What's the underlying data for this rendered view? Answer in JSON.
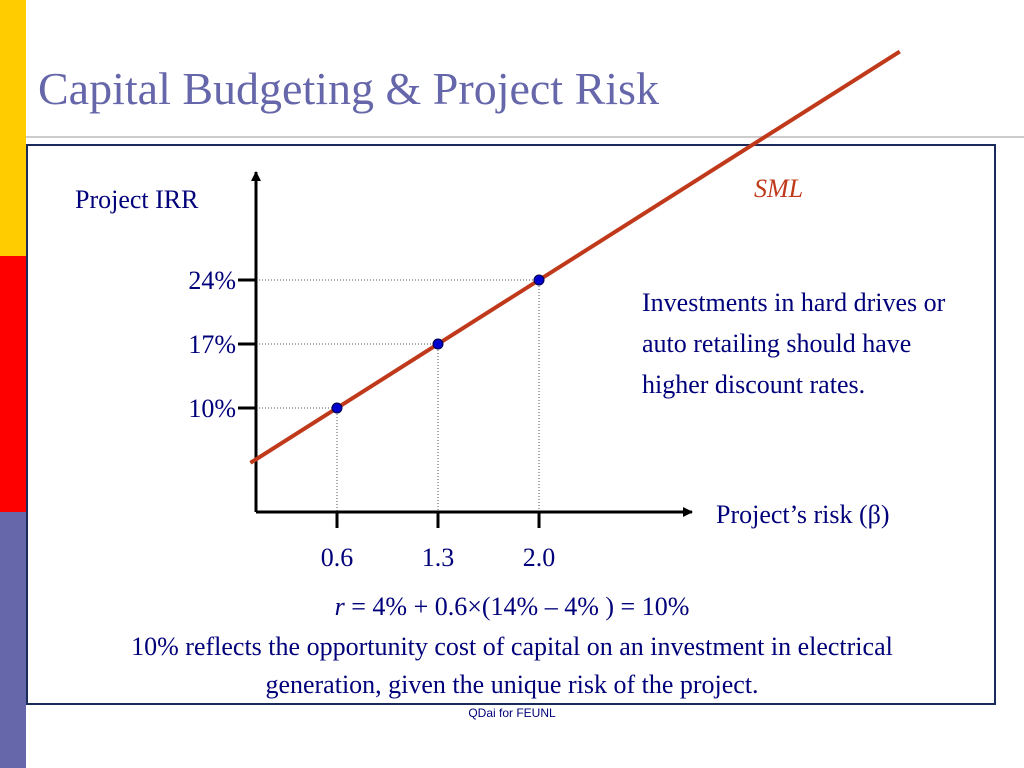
{
  "slide": {
    "title": "Capital Budgeting & Project Risk",
    "annotation": "Investments in hard drives or auto retailing should have higher discount rates.",
    "formula_var": "r",
    "formula_rest": " = 4% + 0.6×(14% – 4% ) = 10%",
    "note": "10% reflects the opportunity cost of capital on an investment in electrical generation, given the unique risk of the project.",
    "footer": "QDai for FEUNL"
  },
  "colors": {
    "title": "#6666aa",
    "text": "#00007a",
    "sml_line": "#c0391b",
    "points": "#0000cc",
    "axis": "#000000",
    "stripe_top": "#ffcc00",
    "stripe_middle": "#ff0000",
    "stripe_bottom": "#6666aa"
  },
  "chart_data": {
    "type": "line",
    "ylabel": "Project IRR",
    "xlabel": "Project’s risk (β)",
    "line_label": "SML",
    "intercept": 4,
    "slope": 10,
    "line_x_range": [
      0,
      4.5
    ],
    "points": [
      {
        "x": 0.6,
        "y": 10
      },
      {
        "x": 1.3,
        "y": 17
      },
      {
        "x": 2.0,
        "y": 24
      }
    ],
    "x_ticks": [
      "0.6",
      "1.3",
      "2.0"
    ],
    "y_ticks": [
      "10%",
      "17%",
      "24%"
    ],
    "grid": false
  }
}
